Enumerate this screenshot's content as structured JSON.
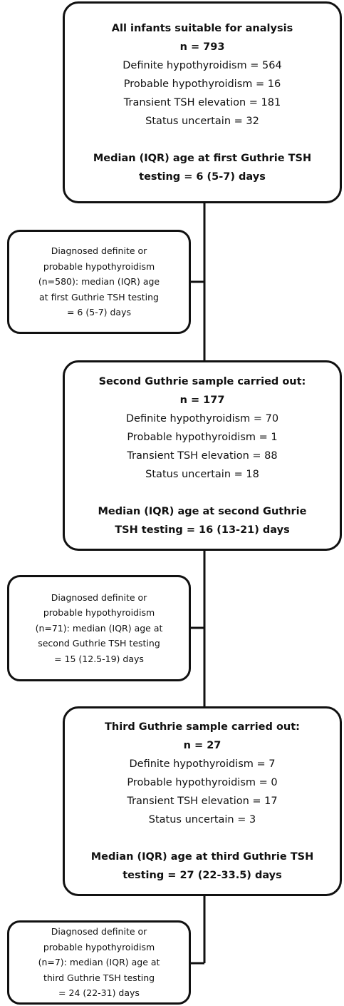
{
  "nodes": [
    {
      "title": "All infants suitable for analysis",
      "n": "n = 793",
      "lines": [
        "Definite hypothyroidism = 564",
        "Probable hypothyroidism = 16",
        "Transient TSH elevation = 181",
        "Status uncertain = 32"
      ],
      "footer": [
        "Median (IQR) age at first Guthrie TSH",
        "testing = 6 (5-7) days"
      ]
    },
    {
      "title": "Second Guthrie sample carried out:",
      "n": "n = 177",
      "lines": [
        "Definite hypothyroidism = 70",
        "Probable hypothyroidism = 1",
        "Transient TSH elevation = 88",
        "Status uncertain = 18"
      ],
      "footer": [
        "Median (IQR) age at second Guthrie",
        "TSH testing = 16 (13-21) days"
      ]
    },
    {
      "title": "Third Guthrie sample carried out:",
      "n": "n = 27",
      "lines": [
        "Definite hypothyroidism = 7",
        "Probable hypothyroidism = 0",
        "Transient TSH elevation = 17",
        "Status uncertain = 3"
      ],
      "footer": [
        "Median (IQR) age at third Guthrie TSH",
        "testing = 27 (22-33.5) days"
      ]
    }
  ],
  "side_nodes": [
    {
      "lines": [
        "Diagnosed definite or",
        "probable hypothyroidism",
        "(n=580): median (IQR) age",
        "at first Guthrie TSH testing",
        "= 6 (5-7) days"
      ]
    },
    {
      "lines": [
        "Diagnosed definite or",
        "probable hypothyroidism",
        "(n=71): median (IQR) age at",
        "second Guthrie TSH testing",
        "= 15 (12.5-19) days"
      ]
    },
    {
      "lines": [
        "Diagnosed definite or",
        "probable hypothyroidism",
        "(n=7): median (IQR) age at",
        "third Guthrie TSH testing",
        "= 24 (22-31) days"
      ]
    }
  ]
}
